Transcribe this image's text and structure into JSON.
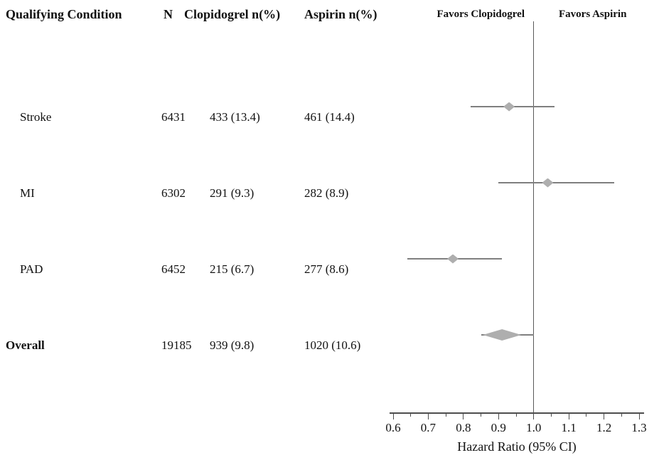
{
  "table": {
    "headers": {
      "condition": "Qualifying Condition",
      "n": "N",
      "clopidogrel": "Clopidogrel n(%)",
      "aspirin": "Aspirin n(%)"
    }
  },
  "plot": {
    "favors_left": "Favors Clopidogrel",
    "favors_right": "Favors Aspirin",
    "xlabel": "Hazard Ratio (95% CI)"
  },
  "colors": {
    "diamond": "#aeaeae",
    "ci_line": "#7f7f7f",
    "axis": "#4d4d4d",
    "reference_line": "#5a5a5a",
    "text": "#111111"
  },
  "chart_data": {
    "type": "scatter",
    "subtype": "forest-plot",
    "title": "",
    "xlabel": "Hazard Ratio (95% CI)",
    "xlim": [
      0.6,
      1.3
    ],
    "x_ticks": [
      "0.6",
      "0.7",
      "0.8",
      "0.9",
      "1.0",
      "1.1",
      "1.2",
      "1.3"
    ],
    "reference_line": 1.0,
    "legend_left": "Favors Clopidogrel",
    "legend_right": "Favors Aspirin",
    "grid": false,
    "rows": [
      {
        "condition": "Stroke",
        "n": "6431",
        "clopidogrel": "433 (13.4)",
        "aspirin": "461 (14.4)",
        "hr": 0.93,
        "ci_low": 0.82,
        "ci_high": 1.06,
        "overall": false
      },
      {
        "condition": "MI",
        "n": "6302",
        "clopidogrel": "291 (9.3)",
        "aspirin": "282 (8.9)",
        "hr": 1.04,
        "ci_low": 0.9,
        "ci_high": 1.23,
        "overall": false
      },
      {
        "condition": "PAD",
        "n": "6452",
        "clopidogrel": "215 (6.7)",
        "aspirin": "277 (8.6)",
        "hr": 0.77,
        "ci_low": 0.64,
        "ci_high": 0.91,
        "overall": false
      },
      {
        "condition": "Overall",
        "n": "19185",
        "clopidogrel": "939 (9.8)",
        "aspirin": "1020 (10.6)",
        "hr": 0.91,
        "ci_low": 0.85,
        "ci_high": 1.0,
        "overall": true
      }
    ]
  }
}
